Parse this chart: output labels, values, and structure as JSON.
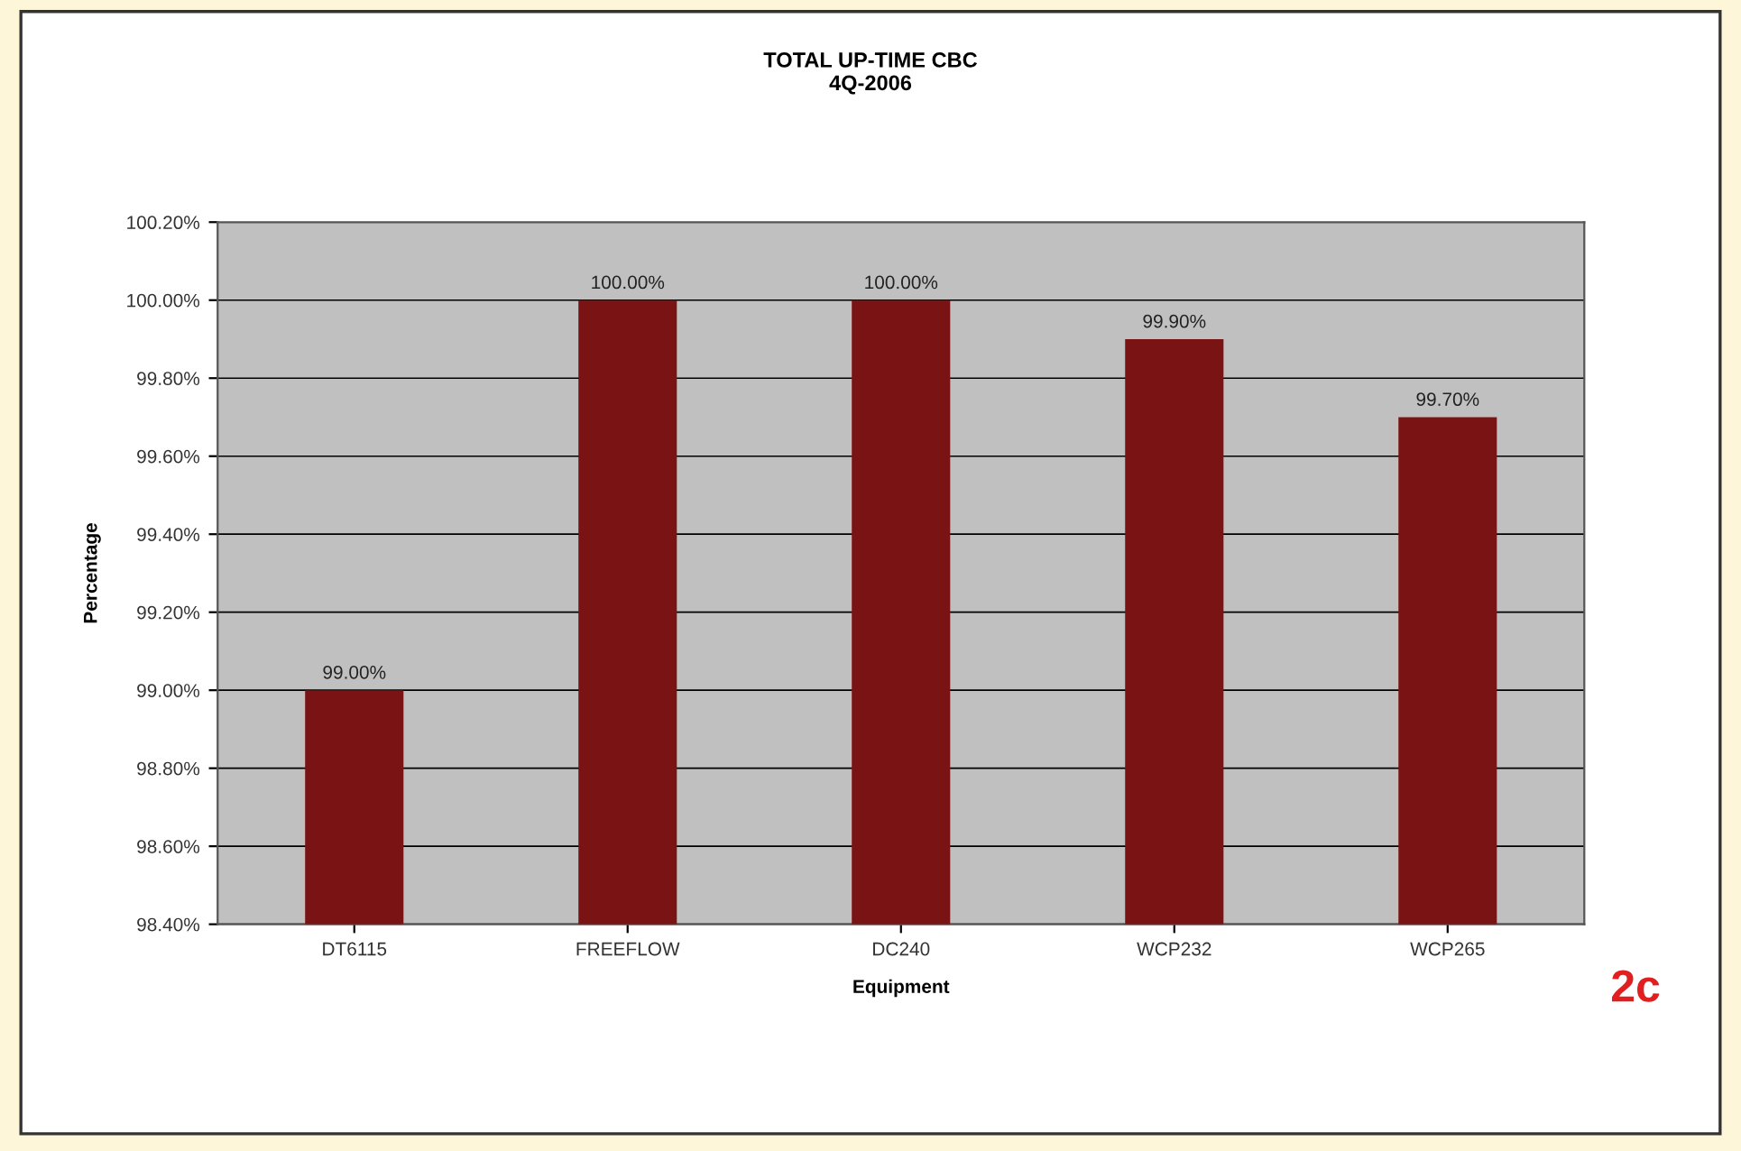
{
  "chart_data": {
    "type": "bar",
    "title": "TOTAL UP-TIME CBC\n4Q-2006",
    "xlabel": "Equipment",
    "ylabel": "Percentage",
    "categories": [
      "DT6115",
      "FREEFLOW",
      "DC240",
      "WCP232",
      "WCP265"
    ],
    "values": [
      99.0,
      100.0,
      100.0,
      99.9,
      99.7
    ],
    "value_labels": [
      "99.00%",
      "100.00%",
      "100.00%",
      "99.90%",
      "99.70%"
    ],
    "color": "#7a1414",
    "ylim": [
      98.4,
      100.2
    ],
    "yticks": [
      {
        "value": 98.4,
        "label": "98.40%"
      },
      {
        "value": 98.6,
        "label": "98.60%"
      },
      {
        "value": 98.8,
        "label": "98.80%"
      },
      {
        "value": 99.0,
        "label": "99.00%"
      },
      {
        "value": 99.2,
        "label": "99.20%"
      },
      {
        "value": 99.4,
        "label": "99.40%"
      },
      {
        "value": 99.6,
        "label": "99.60%"
      },
      {
        "value": 99.8,
        "label": "99.80%"
      },
      {
        "value": 100.0,
        "label": "100.00%"
      },
      {
        "value": 100.2,
        "label": "100.20%"
      }
    ],
    "grid": "y",
    "annotations": [
      "2c"
    ]
  }
}
